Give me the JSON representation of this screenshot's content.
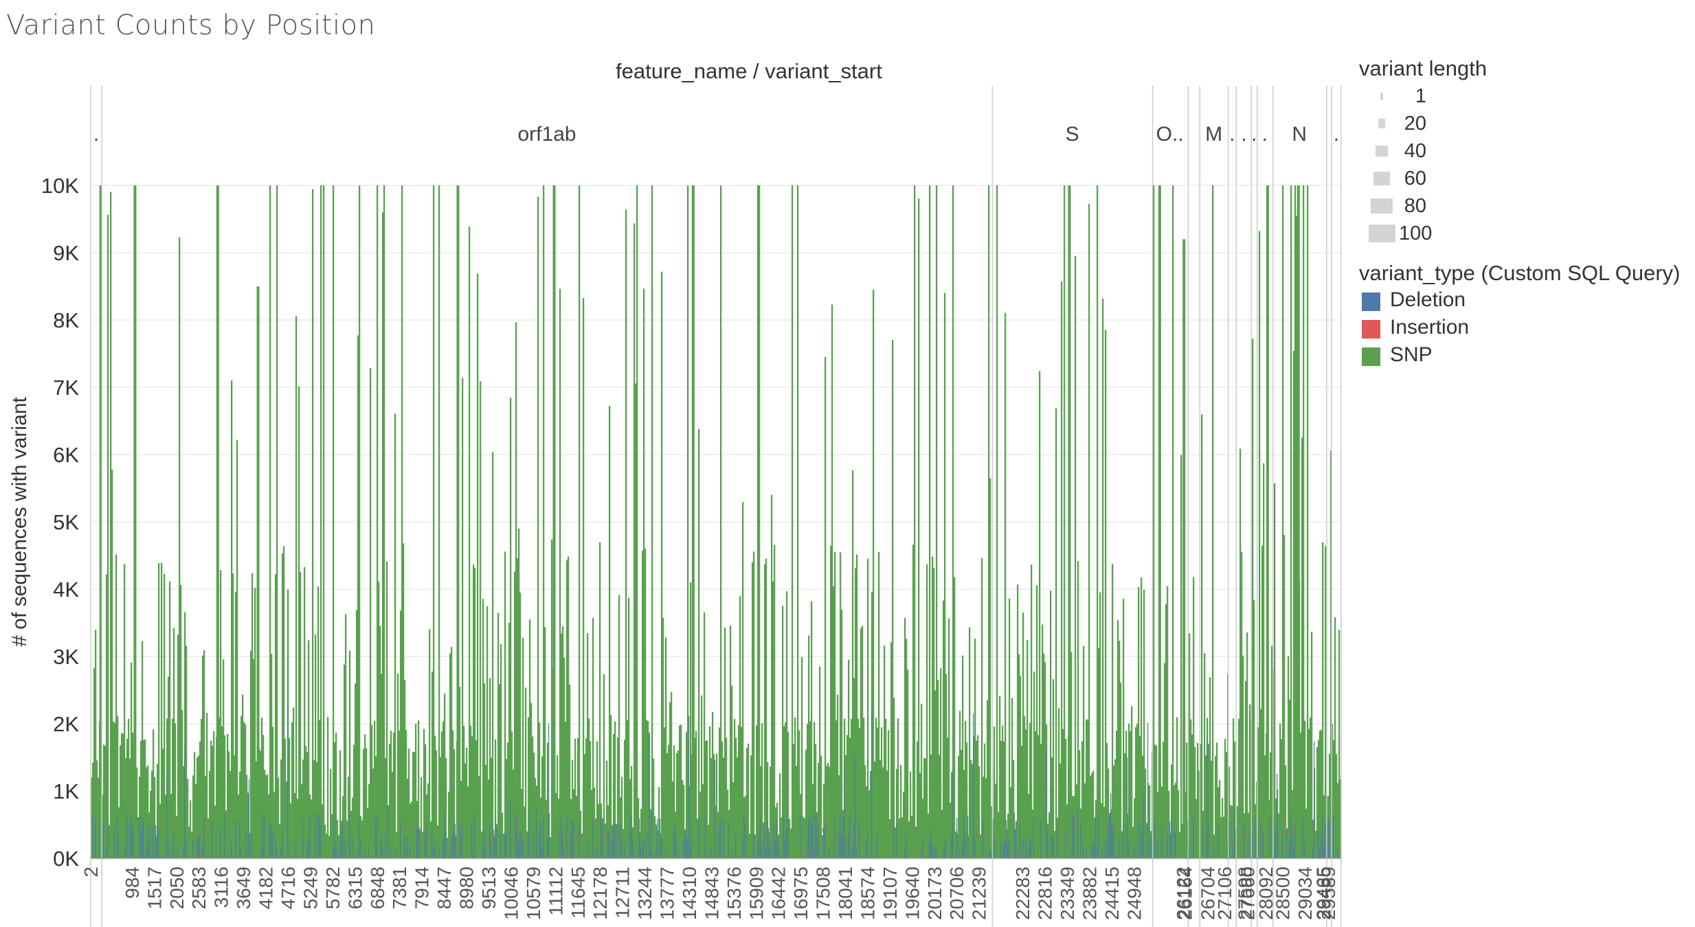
{
  "page_title": "Variant Counts by Position",
  "chart_data": {
    "type": "bar",
    "stacked": true,
    "header_label": "feature_name  /  variant_start",
    "ylabel": "# of sequences with variant",
    "ylim": [
      0,
      10000
    ],
    "yticks": [
      {
        "value": 0,
        "label": "0K"
      },
      {
        "value": 1000,
        "label": "1K"
      },
      {
        "value": 2000,
        "label": "2K"
      },
      {
        "value": 3000,
        "label": "3K"
      },
      {
        "value": 4000,
        "label": "4K"
      },
      {
        "value": 5000,
        "label": "5K"
      },
      {
        "value": 6000,
        "label": "6K"
      },
      {
        "value": 7000,
        "label": "7K"
      },
      {
        "value": 8000,
        "label": "8K"
      },
      {
        "value": 9000,
        "label": "9K"
      },
      {
        "value": 10000,
        "label": "10K"
      }
    ],
    "features": [
      {
        "name": ".",
        "start": 1,
        "end": 265
      },
      {
        "name": "orf1ab",
        "start": 266,
        "end": 21555
      },
      {
        "name": "S",
        "start": 21563,
        "end": 25384
      },
      {
        "name": "O..",
        "start": 25393,
        "end": 26220
      },
      {
        "name": "",
        "start": 26245,
        "end": 26472
      },
      {
        "name": "M",
        "start": 26523,
        "end": 27191
      },
      {
        "name": ".",
        "start": 27202,
        "end": 27387
      },
      {
        "name": ".",
        "start": 27394,
        "end": 27759
      },
      {
        "name": ".",
        "start": 27756,
        "end": 27887
      },
      {
        "name": ".",
        "start": 27894,
        "end": 28259
      },
      {
        "name": "N",
        "start": 28274,
        "end": 29533
      },
      {
        "name": "",
        "start": 29558,
        "end": 29674
      },
      {
        "name": ".",
        "start": 29675,
        "end": 29903
      }
    ],
    "xtick_labels": [
      "2",
      "984",
      "1517",
      "2050",
      "2583",
      "3116",
      "3649",
      "4182",
      "4716",
      "5249",
      "5782",
      "6315",
      "6848",
      "7381",
      "7914",
      "8447",
      "8980",
      "9513",
      "10046",
      "10579",
      "11112",
      "11645",
      "12178",
      "12711",
      "13244",
      "13777",
      "14310",
      "14843",
      "15376",
      "15909",
      "16442",
      "16975",
      "17508",
      "18041",
      "18574",
      "19107",
      "19640",
      "20173",
      "20706",
      "21239",
      "22283",
      "22816",
      "23349",
      "23882",
      "24415",
      "24948",
      "26122",
      "26164",
      "26704",
      "27106",
      "27598",
      "27660",
      "28092",
      "28500",
      "29034",
      "29465",
      "29485",
      "29589"
    ],
    "xtick_positions": [
      2,
      984,
      1517,
      2050,
      2583,
      3116,
      3649,
      4182,
      4716,
      5249,
      5782,
      6315,
      6848,
      7381,
      7914,
      8447,
      8980,
      9513,
      10046,
      10579,
      11112,
      11645,
      12178,
      12711,
      13244,
      13777,
      14310,
      14843,
      15376,
      15909,
      16442,
      16975,
      17508,
      18041,
      18574,
      19107,
      19640,
      20173,
      20706,
      21239,
      22283,
      22816,
      23349,
      23882,
      24415,
      24948,
      26122,
      26164,
      26704,
      27106,
      27598,
      27660,
      28092,
      28500,
      29034,
      29465,
      29485,
      29589
    ],
    "series_colors": {
      "Deletion": "#4e79a7",
      "Insertion": "#e15759",
      "SNP": "#59a14f"
    },
    "grid_color": "#ececec",
    "separator_color": "#cccccc",
    "legend_placement": "right",
    "major_peaks": [
      {
        "x": 241,
        "value": 10000
      },
      {
        "x": 1059,
        "value": 10000
      },
      {
        "x": 3037,
        "value": 10000
      },
      {
        "x": 4002,
        "value": 8500
      },
      {
        "x": 8782,
        "value": 10000
      },
      {
        "x": 11083,
        "value": 10000
      },
      {
        "x": 14408,
        "value": 10000
      },
      {
        "x": 23403,
        "value": 10000
      },
      {
        "x": 25563,
        "value": 10000
      },
      {
        "x": 26144,
        "value": 9200
      },
      {
        "x": 28144,
        "value": 10000
      },
      {
        "x": 28881,
        "value": 10000
      }
    ]
  },
  "legend": {
    "size_title": "variant length",
    "size_items": [
      {
        "label": "1",
        "value": 1
      },
      {
        "label": "20",
        "value": 20
      },
      {
        "label": "40",
        "value": 40
      },
      {
        "label": "60",
        "value": 60
      },
      {
        "label": "80",
        "value": 80
      },
      {
        "label": "100",
        "value": 100
      }
    ],
    "type_title": "variant_type (Custom SQL Query)",
    "type_items": [
      {
        "label": "Deletion",
        "color": "#4e79a7"
      },
      {
        "label": "Insertion",
        "color": "#e15759"
      },
      {
        "label": "SNP",
        "color": "#59a14f"
      }
    ]
  }
}
